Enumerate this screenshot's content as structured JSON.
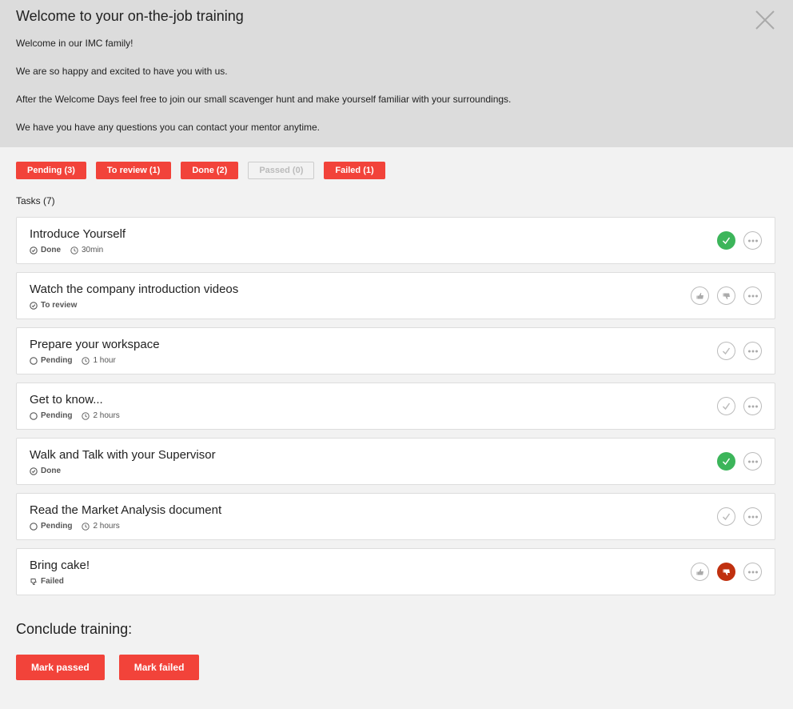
{
  "header": {
    "title": "Welcome to your on-the-job training",
    "paragraphs": [
      "Welcome in our IMC family!",
      "We are so happy and excited to have you with us.",
      "After the Welcome Days feel free to join our small scavenger hunt and make yourself familiar with your surroundings.",
      "We have you have any questions you can contact your mentor anytime."
    ]
  },
  "filters": [
    {
      "label": "Pending (3)",
      "active": true
    },
    {
      "label": "To review (1)",
      "active": true
    },
    {
      "label": "Done (2)",
      "active": true
    },
    {
      "label": "Passed (0)",
      "active": false
    },
    {
      "label": "Failed (1)",
      "active": true
    }
  ],
  "tasks_count": "Tasks (7)",
  "tasks": [
    {
      "title": "Introduce Yourself",
      "status": "Done",
      "status_icon": "check-circle-icon",
      "duration": "30min",
      "actions": "done"
    },
    {
      "title": "Watch the company introduction videos",
      "status": "To review",
      "status_icon": "check-circle-icon",
      "duration": "",
      "actions": "review"
    },
    {
      "title": "Prepare your workspace",
      "status": "Pending",
      "status_icon": "circle-icon",
      "duration": "1 hour",
      "actions": "check"
    },
    {
      "title": "Get to know...",
      "status": "Pending",
      "status_icon": "circle-icon",
      "duration": "2 hours",
      "actions": "check"
    },
    {
      "title": "Walk and Talk with your Supervisor",
      "status": "Done",
      "status_icon": "check-circle-icon",
      "duration": "",
      "actions": "done"
    },
    {
      "title": "Read the Market Analysis document",
      "status": "Pending",
      "status_icon": "circle-icon",
      "duration": "2 hours",
      "actions": "check"
    },
    {
      "title": "Bring cake!",
      "status": "Failed",
      "status_icon": "thumbs-down-icon",
      "duration": "",
      "actions": "failed"
    }
  ],
  "conclude": {
    "title": "Conclude training:",
    "pass_label": "Mark passed",
    "fail_label": "Mark failed"
  },
  "colors": {
    "accent": "#f2433a",
    "done": "#3cb55a",
    "failed": "#c0300f"
  }
}
